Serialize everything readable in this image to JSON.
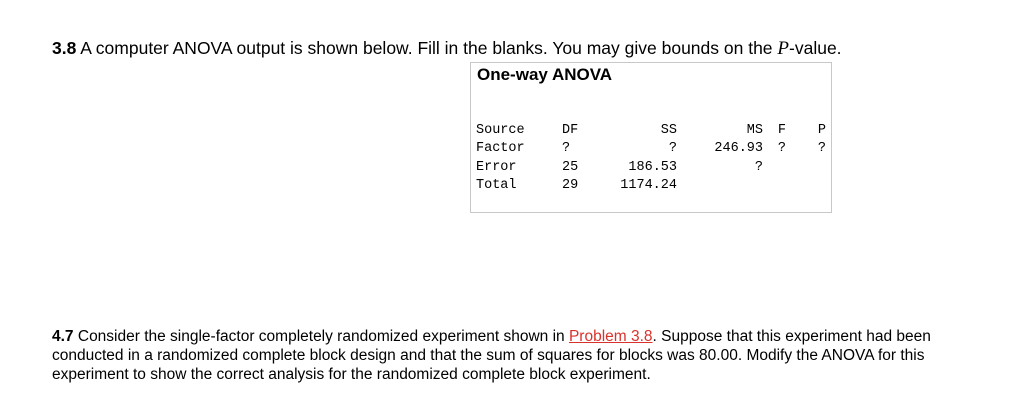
{
  "q1": {
    "number": "3.8",
    "text": " A computer ANOVA output is shown below. Fill in the blanks. You may give bounds on the ",
    "pvar": "P",
    "after": "-value."
  },
  "anova": {
    "title": "One-way ANOVA",
    "headers": [
      "Source",
      "DF",
      "SS",
      "MS",
      "F",
      "P"
    ],
    "rows": [
      [
        "Factor",
        "?",
        "?",
        "246.93",
        "?",
        "?"
      ],
      [
        "Error",
        "25",
        "186.53",
        "?",
        "",
        ""
      ],
      [
        "Total",
        "29",
        "1174.24",
        "",
        "",
        ""
      ]
    ]
  },
  "q2": {
    "number": "4.7",
    "before": " Consider the single-factor completely randomized experiment shown in ",
    "link": "Problem 3.8",
    "after": ". Suppose that this experiment had been conducted in a randomized complete block design and that the sum of squares for blocks was 80.00. Modify the ANOVA for this experiment to show the correct analysis for the randomized complete block experiment."
  }
}
